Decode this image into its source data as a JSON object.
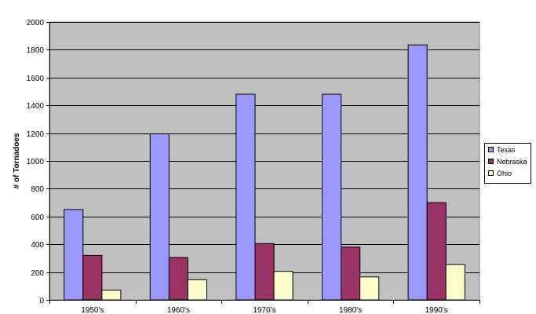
{
  "chart_data": {
    "type": "bar",
    "title": "",
    "xlabel": "",
    "ylabel": "# of Tornadoes",
    "categories": [
      "1950's",
      "1960's",
      "1970's",
      "1980's",
      "1990's"
    ],
    "ylim": [
      0,
      2000
    ],
    "yticks": [
      0,
      200,
      400,
      600,
      800,
      1000,
      1200,
      1400,
      1600,
      1800,
      2000
    ],
    "grid": true,
    "legend_position": "right",
    "plot_background": "#c0c0c0",
    "series": [
      {
        "name": "Texas",
        "color": "#9999ff",
        "values": [
          650,
          1195,
          1480,
          1480,
          1835
        ]
      },
      {
        "name": "Nebraska",
        "color": "#993366",
        "values": [
          320,
          305,
          405,
          380,
          700
        ]
      },
      {
        "name": "Ohio",
        "color": "#ffffcc",
        "values": [
          70,
          145,
          205,
          165,
          255
        ]
      }
    ]
  }
}
